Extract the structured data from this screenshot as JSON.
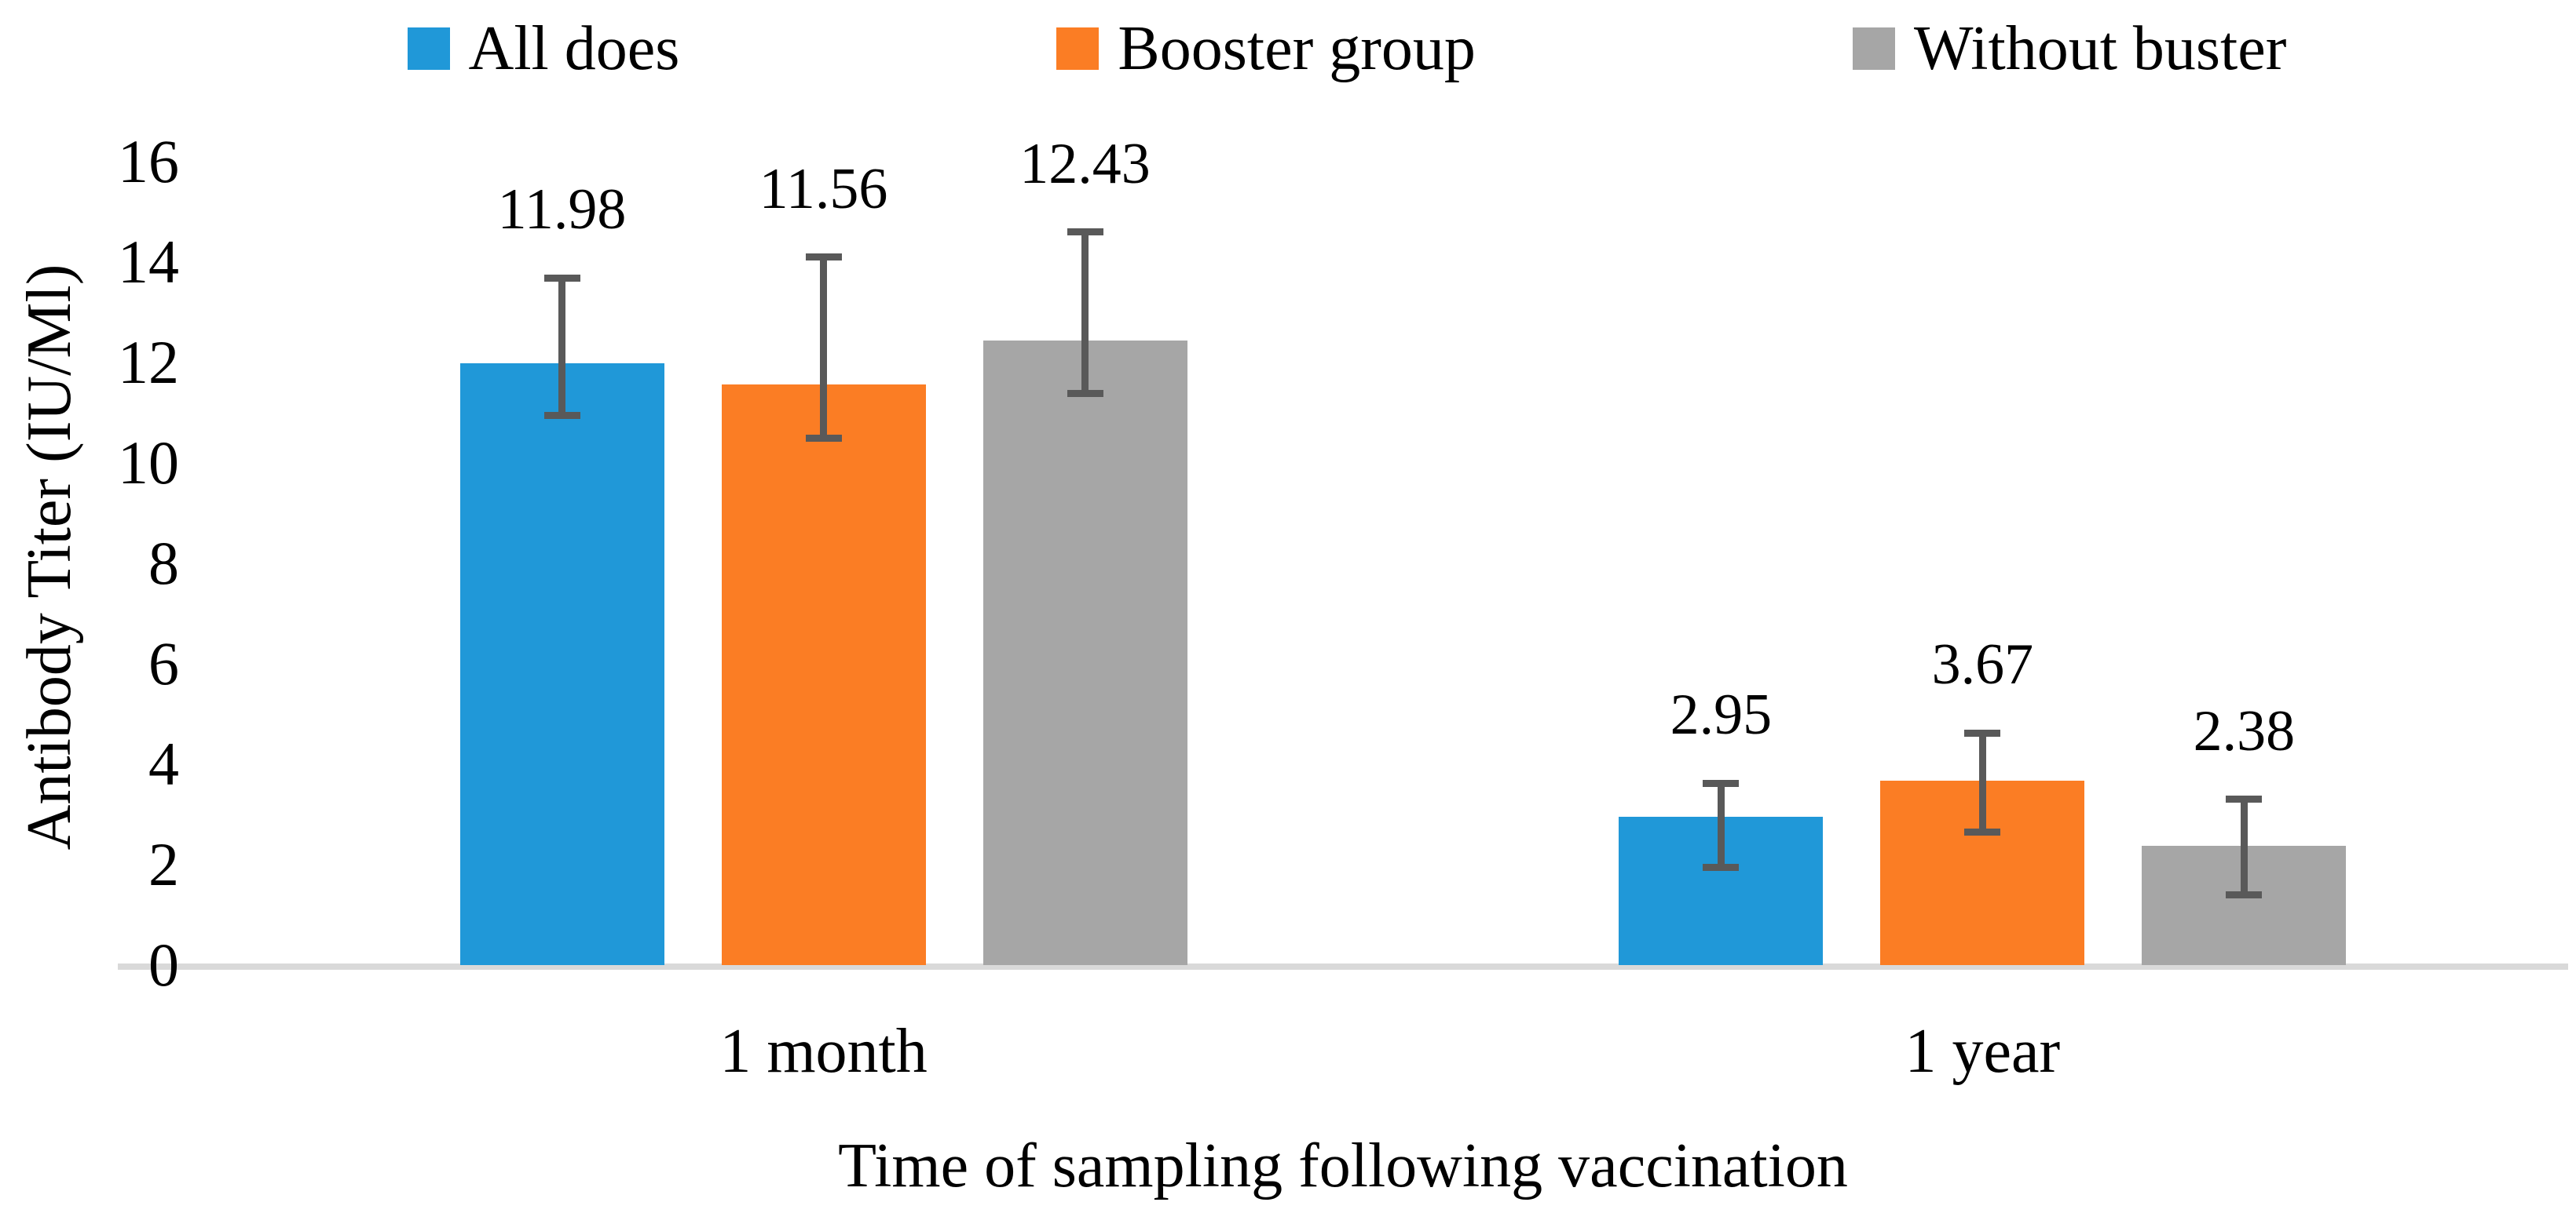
{
  "figure": {
    "background": "#FFFFFF",
    "text_color": "#000000"
  },
  "chart_data": {
    "type": "bar",
    "categories": [
      "1 month",
      "1 year"
    ],
    "series": [
      {
        "name": "All does",
        "color": "#2098D8",
        "values": [
          11.98,
          2.95
        ],
        "labels": [
          "11.98",
          "2.95"
        ],
        "error_low": [
          10.95,
          1.95
        ],
        "error_high": [
          13.68,
          3.62
        ]
      },
      {
        "name": "Booster group",
        "color": "#FB7D24",
        "values": [
          11.56,
          3.67
        ],
        "labels": [
          "11.56",
          "3.67"
        ],
        "error_low": [
          10.5,
          2.65
        ],
        "error_high": [
          14.1,
          4.62
        ]
      },
      {
        "name": "Without buster",
        "color": "#A6A6A6",
        "values": [
          12.43,
          2.38
        ],
        "labels": [
          "12.43",
          "2.38"
        ],
        "error_low": [
          11.38,
          1.4
        ],
        "error_high": [
          14.6,
          3.3
        ]
      }
    ],
    "title": "",
    "xlabel": "Time of sampling following vaccination",
    "ylabel": "Antibody Titer (IU/Ml)",
    "ylim": [
      0,
      16
    ],
    "ytick_step": 2,
    "yticks": [
      "0",
      "2",
      "4",
      "6",
      "8",
      "10",
      "12",
      "14",
      "16"
    ],
    "grid": false,
    "legend_position": "top",
    "error_bar_color": "#595959",
    "axis_line_color": "#D9D9D9"
  }
}
